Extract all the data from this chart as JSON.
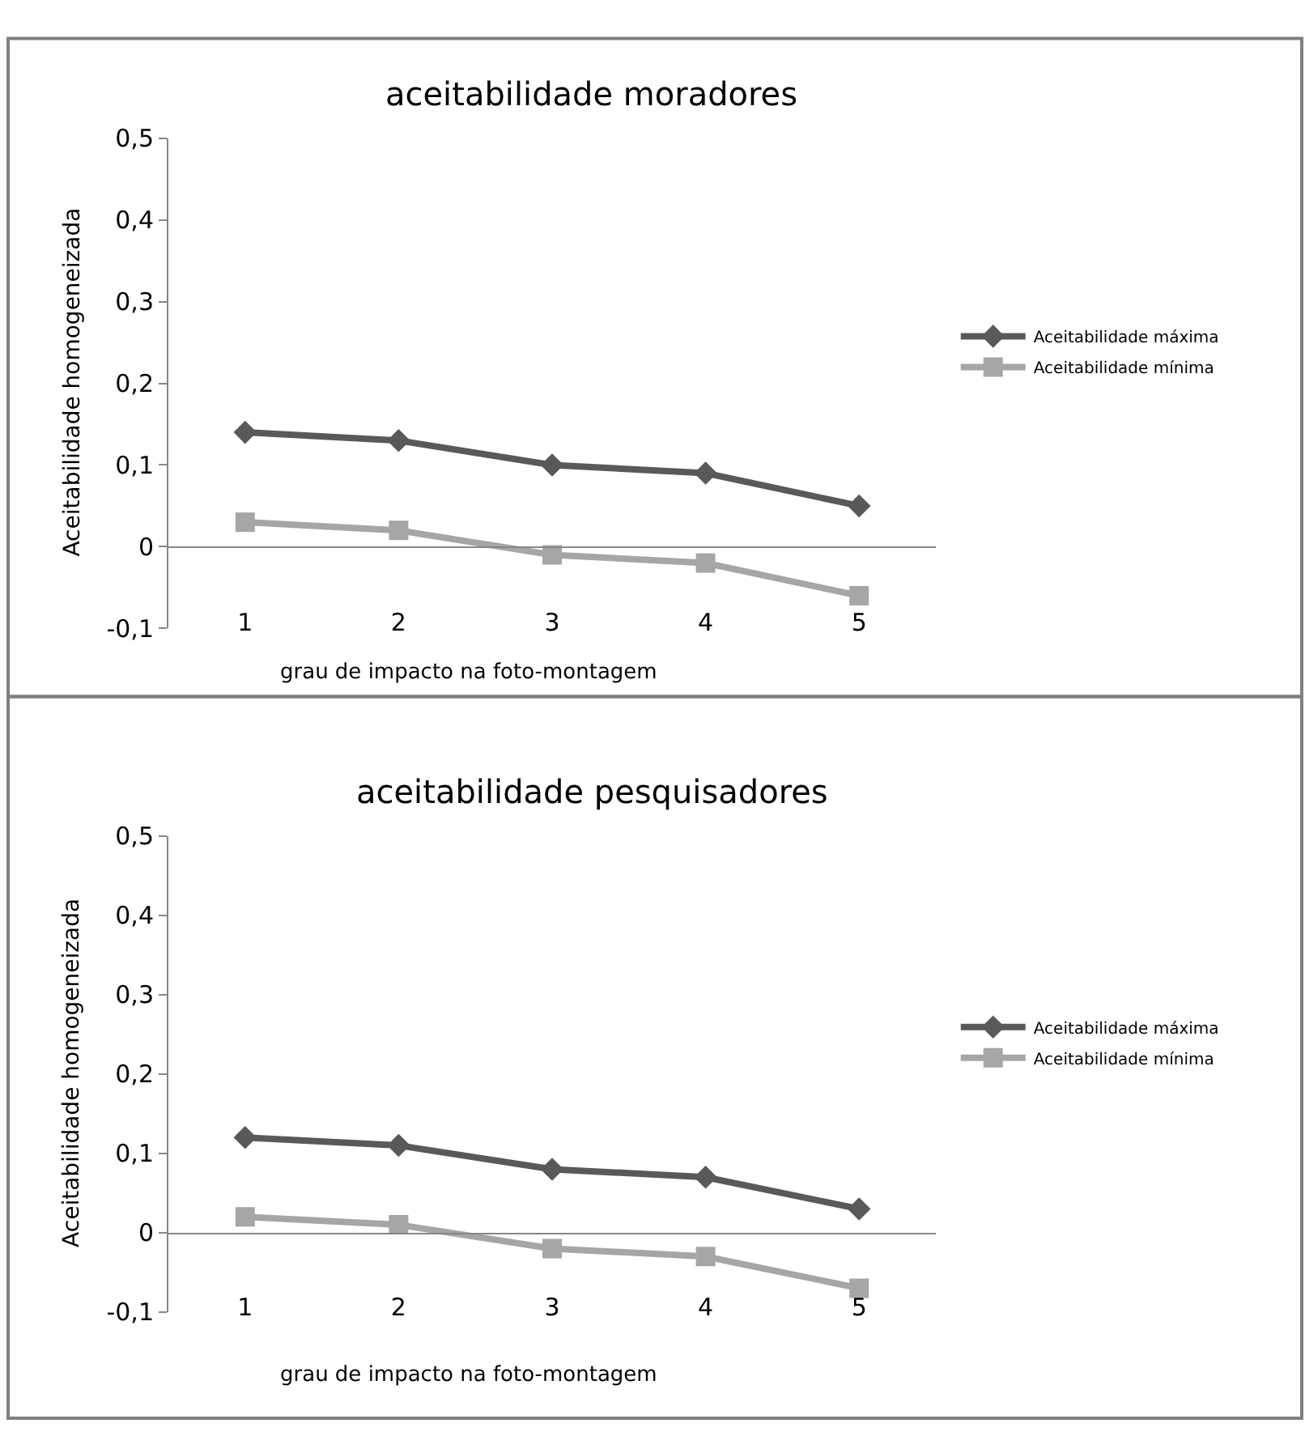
{
  "chart_data": [
    {
      "type": "line",
      "title": "aceitabilidade moradores",
      "xlabel": "grau de impacto na foto-montagem",
      "ylabel": "Aceitabilidade homogeneizada",
      "categories": [
        "1",
        "2",
        "3",
        "4",
        "5"
      ],
      "series": [
        {
          "name": "Aceitabilidade máxima",
          "color": "#595959",
          "marker": "diamond",
          "values": [
            0.14,
            0.13,
            0.1,
            0.09,
            0.05
          ]
        },
        {
          "name": "Aceitabilidade mínima",
          "color": "#a6a6a6",
          "marker": "square",
          "values": [
            0.03,
            0.02,
            -0.01,
            -0.02,
            -0.06
          ]
        }
      ],
      "ylim": [
        -0.1,
        0.5
      ],
      "yticks": [
        {
          "value": -0.1,
          "label": "-0,1"
        },
        0,
        {
          "value": 0.1,
          "label": "0,1"
        },
        {
          "value": 0.2,
          "label": "0,2"
        },
        {
          "value": 0.3,
          "label": "0,3"
        },
        {
          "value": 0.4,
          "label": "0,4"
        },
        {
          "value": 0.5,
          "label": "0,5"
        }
      ],
      "grid": false,
      "legend": "right"
    },
    {
      "type": "line",
      "title": "aceitabilidade pesquisadores",
      "xlabel": "grau de impacto na foto-montagem",
      "ylabel": "Aceitabilidade homogeneizada",
      "categories": [
        "1",
        "2",
        "3",
        "4",
        "5"
      ],
      "series": [
        {
          "name": "Aceitabilidade máxima",
          "color": "#595959",
          "marker": "diamond",
          "values": [
            0.12,
            0.11,
            0.08,
            0.07,
            0.03
          ]
        },
        {
          "name": "Aceitabilidade mínima",
          "color": "#a6a6a6",
          "marker": "square",
          "values": [
            0.02,
            0.01,
            -0.02,
            -0.03,
            -0.07
          ]
        }
      ],
      "ylim": [
        -0.1,
        0.5
      ],
      "yticks": [
        {
          "value": -0.1,
          "label": "-0,1"
        },
        0,
        {
          "value": 0.1,
          "label": "0,1"
        },
        {
          "value": 0.2,
          "label": "0,2"
        },
        {
          "value": 0.3,
          "label": "0,3"
        },
        {
          "value": 0.4,
          "label": "0,4"
        },
        {
          "value": 0.5,
          "label": "0,5"
        }
      ],
      "grid": false,
      "legend": "right"
    }
  ]
}
